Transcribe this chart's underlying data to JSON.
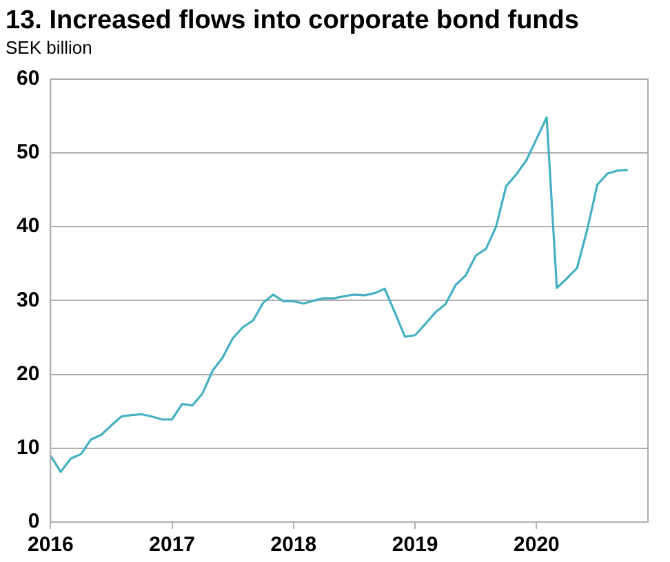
{
  "chart_data": {
    "type": "line",
    "title": "13. Increased flows into corporate bond funds",
    "subtitle": "SEK billion",
    "x": [
      "2016-01",
      "2016-02",
      "2016-03",
      "2016-04",
      "2016-05",
      "2016-06",
      "2016-07",
      "2016-08",
      "2016-09",
      "2016-10",
      "2016-11",
      "2016-12",
      "2017-01",
      "2017-02",
      "2017-03",
      "2017-04",
      "2017-05",
      "2017-06",
      "2017-07",
      "2017-08",
      "2017-09",
      "2017-10",
      "2017-11",
      "2017-12",
      "2018-01",
      "2018-02",
      "2018-03",
      "2018-04",
      "2018-05",
      "2018-06",
      "2018-07",
      "2018-08",
      "2018-09",
      "2018-10",
      "2018-11",
      "2018-12",
      "2019-01",
      "2019-02",
      "2019-03",
      "2019-04",
      "2019-05",
      "2019-06",
      "2019-07",
      "2019-08",
      "2019-09",
      "2019-10",
      "2019-11",
      "2019-12",
      "2020-01",
      "2020-02",
      "2020-03",
      "2020-04",
      "2020-05",
      "2020-06",
      "2020-07",
      "2020-08",
      "2020-09",
      "2020-10"
    ],
    "series": [
      {
        "color": "#45b0c4",
        "values": [
          9.0,
          6.8,
          8.6,
          9.2,
          11.2,
          11.8,
          13.1,
          14.3,
          14.5,
          14.6,
          14.3,
          13.9,
          13.9,
          16.0,
          15.8,
          17.4,
          20.5,
          22.3,
          24.9,
          26.4,
          27.3,
          29.7,
          30.8,
          29.9,
          29.9,
          29.6,
          30.0,
          30.3,
          30.3,
          30.6,
          30.8,
          30.7,
          31.0,
          31.6,
          28.4,
          25.1,
          25.3,
          26.8,
          28.4,
          29.5,
          32.1,
          33.4,
          36.1,
          37.0,
          40.0,
          45.5,
          47.1,
          49.0,
          51.9,
          54.8,
          31.7,
          33.0,
          34.4,
          39.6,
          45.7,
          47.2,
          47.6,
          47.7
        ]
      }
    ],
    "xlim": [
      "2016-01",
      "2020-12"
    ],
    "xticks": [
      {
        "value": "2016-01",
        "label": "2016"
      },
      {
        "value": "2017-01",
        "label": "2017"
      },
      {
        "value": "2018-01",
        "label": "2018"
      },
      {
        "value": "2019-01",
        "label": "2019"
      },
      {
        "value": "2020-01",
        "label": "2020"
      }
    ],
    "ylim": [
      0,
      60
    ],
    "yticks": [
      0,
      10,
      20,
      30,
      40,
      50,
      60
    ],
    "grid": "y",
    "legend": false,
    "marker": "none",
    "line_style": "solid"
  }
}
